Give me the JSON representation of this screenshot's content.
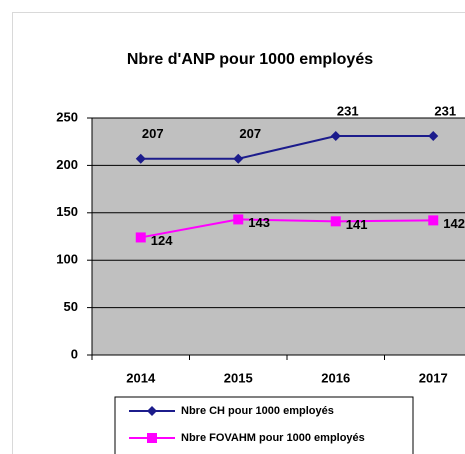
{
  "chart_data": {
    "type": "line",
    "title": "Nbre d'ANP pour 1000 employés",
    "categories": [
      "2014",
      "2015",
      "2016",
      "2017"
    ],
    "series": [
      {
        "name": "Nbre CH pour 1000 employés",
        "color": "#1c1c8c",
        "marker": "diamond",
        "values": [
          207,
          207,
          231,
          231
        ]
      },
      {
        "name": "Nbre FOVAHM pour 1000 employés",
        "color": "#ff00ff",
        "marker": "square",
        "values": [
          124,
          143,
          141,
          142
        ]
      }
    ],
    "ylim": [
      0,
      250
    ],
    "yticks": [
      0,
      50,
      100,
      150,
      200,
      250
    ],
    "grid": true,
    "plot_background": "#c0c0c0",
    "legend": "bottom"
  }
}
